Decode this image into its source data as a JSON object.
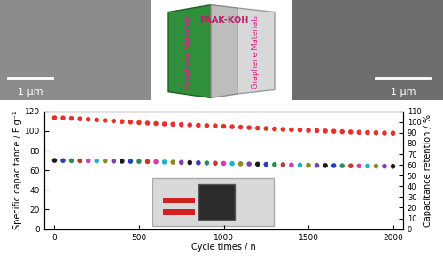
{
  "chart_data": {
    "type": "scatter",
    "xlabel": "Cycle times / n",
    "ylabel": "Specific capacitance / F g⁻¹",
    "y2label": "Capacitance retention / %",
    "x": [
      0,
      50,
      100,
      150,
      200,
      250,
      300,
      350,
      400,
      450,
      500,
      550,
      600,
      650,
      700,
      750,
      800,
      850,
      900,
      950,
      1000,
      1050,
      1100,
      1150,
      1200,
      1250,
      1300,
      1350,
      1400,
      1450,
      1500,
      1550,
      1600,
      1650,
      1700,
      1750,
      1800,
      1850,
      1900,
      1950,
      2000
    ],
    "series": [
      {
        "marker": "o",
        "colors": [
          "#1a1a1a",
          "#2a3fbf",
          "#2e8b57",
          "#c0392b",
          "#d63aaf",
          "#20b2c8",
          "#8a8a20",
          "#7b3fb0",
          "#1a1a1a",
          "#2a3fbf",
          "#2e8b57",
          "#c0392b",
          "#d63aaf",
          "#20b2c8",
          "#8a8a20",
          "#7b3fb0",
          "#1a1a1a",
          "#2a3fbf",
          "#2e8b57",
          "#c0392b",
          "#d63aaf",
          "#20b2c8",
          "#8a8a20",
          "#7b3fb0",
          "#1a1a1a",
          "#2a3fbf",
          "#2e8b57",
          "#c0392b",
          "#d63aaf",
          "#20b2c8",
          "#8a8a20",
          "#7b3fb0",
          "#1a1a1a",
          "#2a3fbf",
          "#2e8b57",
          "#c0392b",
          "#d63aaf",
          "#20b2c8",
          "#8a8a20",
          "#7b3fb0",
          "#1a1a1a"
        ],
        "values": [
          70.0,
          69.9,
          69.8,
          69.7,
          69.6,
          69.5,
          69.4,
          69.3,
          69.2,
          69.1,
          69.0,
          68.8,
          68.6,
          68.4,
          68.2,
          68.0,
          67.8,
          67.6,
          67.4,
          67.2,
          67.0,
          66.8,
          66.6,
          66.4,
          66.2,
          66.0,
          65.8,
          65.6,
          65.4,
          65.2,
          65.0,
          64.9,
          64.8,
          64.7,
          64.6,
          64.5,
          64.4,
          64.3,
          64.2,
          64.1,
          64.0
        ]
      },
      {
        "marker": "o",
        "color": "#e8302a",
        "axis": "y2",
        "values": [
          104.0,
          103.8,
          103.5,
          103.0,
          102.5,
          102.0,
          101.5,
          101.0,
          100.5,
          100.0,
          99.5,
          99.0,
          98.6,
          98.2,
          97.9,
          97.6,
          97.3,
          97.0,
          96.7,
          96.4,
          96.0,
          95.6,
          95.2,
          94.8,
          94.4,
          94.0,
          93.6,
          93.2,
          92.9,
          92.6,
          92.3,
          92.0,
          91.7,
          91.4,
          91.1,
          90.8,
          90.5,
          90.3,
          90.1,
          89.9,
          89.7
        ]
      }
    ],
    "xlim": [
      -60,
      2060
    ],
    "xticks": [
      0,
      500,
      1000,
      1500,
      2000
    ],
    "ylim": [
      0,
      120
    ],
    "yticks": [
      0,
      20,
      40,
      60,
      80,
      100,
      120
    ],
    "y2lim": [
      0,
      110
    ],
    "y2ticks": [
      0,
      10,
      20,
      30,
      40,
      50,
      60,
      70,
      80,
      90,
      100,
      110
    ],
    "grid": false
  },
  "images": {
    "left": {
      "scale_bar": "1 μm"
    },
    "schematic": {
      "electrode_left": "Graphene Materials",
      "electrolyte": "PAAK-KOH",
      "electrode_right": "Graphene Materials"
    },
    "right": {
      "scale_bar": "1 μm"
    }
  }
}
